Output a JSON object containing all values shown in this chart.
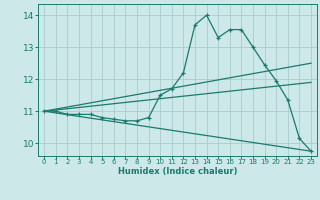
{
  "xlabel": "Humidex (Indice chaleur)",
  "background_color": "#cce8e8",
  "grid_color": "#aacccc",
  "line_color": "#1a7a6e",
  "xlim": [
    -0.5,
    23.5
  ],
  "ylim": [
    9.6,
    14.35
  ],
  "xticks": [
    0,
    1,
    2,
    3,
    4,
    5,
    6,
    7,
    8,
    9,
    10,
    11,
    12,
    13,
    14,
    15,
    16,
    17,
    18,
    19,
    20,
    21,
    22,
    23
  ],
  "yticks": [
    10,
    11,
    12,
    13,
    14
  ],
  "curve1_x": [
    0,
    1,
    2,
    3,
    4,
    5,
    6,
    7,
    8,
    9,
    10,
    11,
    12,
    13,
    14,
    15,
    16,
    17,
    18,
    19,
    20,
    21,
    22,
    23
  ],
  "curve1_y": [
    11.0,
    11.0,
    10.9,
    10.9,
    10.9,
    10.8,
    10.75,
    10.7,
    10.7,
    10.8,
    11.5,
    11.7,
    12.2,
    13.7,
    14.0,
    13.3,
    13.55,
    13.55,
    13.0,
    12.45,
    11.95,
    11.35,
    10.15,
    9.75
  ],
  "curve2_x": [
    0,
    23
  ],
  "curve2_y": [
    11.0,
    12.5
  ],
  "curve3_x": [
    0,
    23
  ],
  "curve3_y": [
    11.0,
    11.9
  ],
  "curve4_x": [
    0,
    23
  ],
  "curve4_y": [
    11.0,
    9.75
  ]
}
